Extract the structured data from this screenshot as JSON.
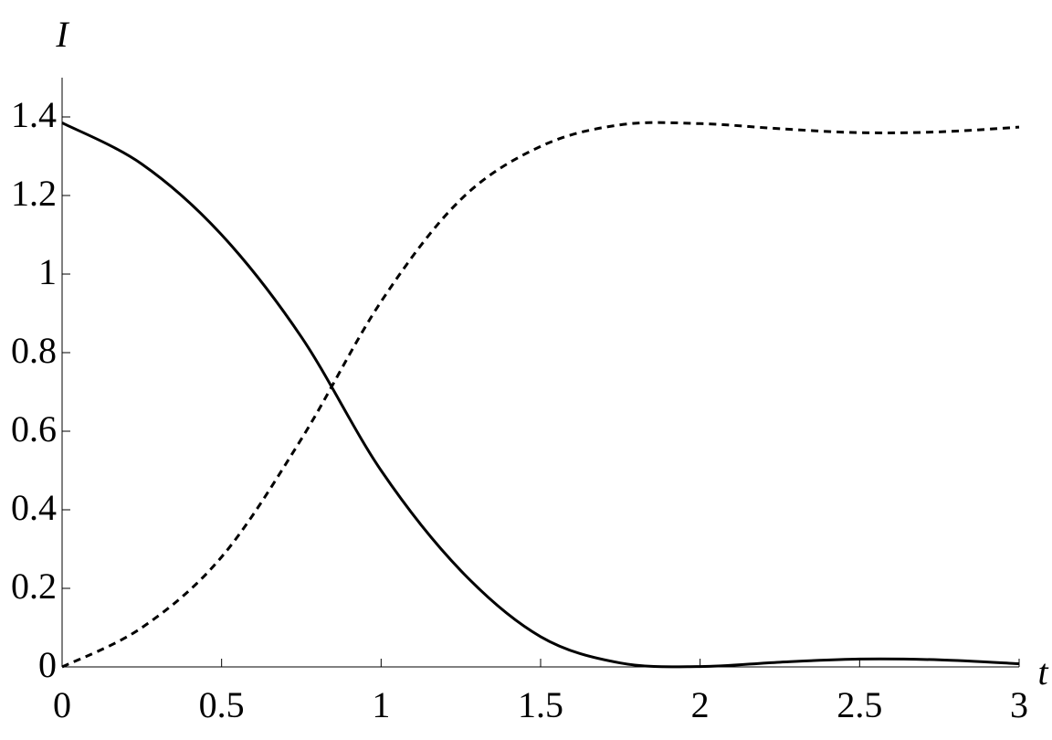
{
  "chart_data": {
    "type": "line",
    "xlabel": "t",
    "ylabel": "I",
    "x": [
      0,
      0.25,
      0.5,
      0.75,
      1,
      1.25,
      1.5,
      1.75,
      2,
      2.25,
      2.5,
      2.75,
      3
    ],
    "series": [
      {
        "color": "#000000",
        "style": "solid",
        "values": [
          1.385,
          1.28,
          1.1,
          0.84,
          0.5,
          0.245,
          0.077,
          0.01,
          0.001,
          0.012,
          0.02,
          0.018,
          0.008
        ]
      },
      {
        "color": "#000000",
        "style": "dashed",
        "values": [
          0,
          0.1,
          0.28,
          0.58,
          0.93,
          1.19,
          1.325,
          1.38,
          1.383,
          1.37,
          1.36,
          1.362,
          1.374
        ]
      }
    ],
    "xlim": [
      0,
      3
    ],
    "ylim": [
      0,
      1.5
    ],
    "xticks": [
      0,
      0.5,
      1,
      1.5,
      2,
      2.5,
      3
    ],
    "yticks": [
      0,
      0.2,
      0.4,
      0.6,
      0.8,
      1,
      1.2,
      1.4
    ]
  }
}
